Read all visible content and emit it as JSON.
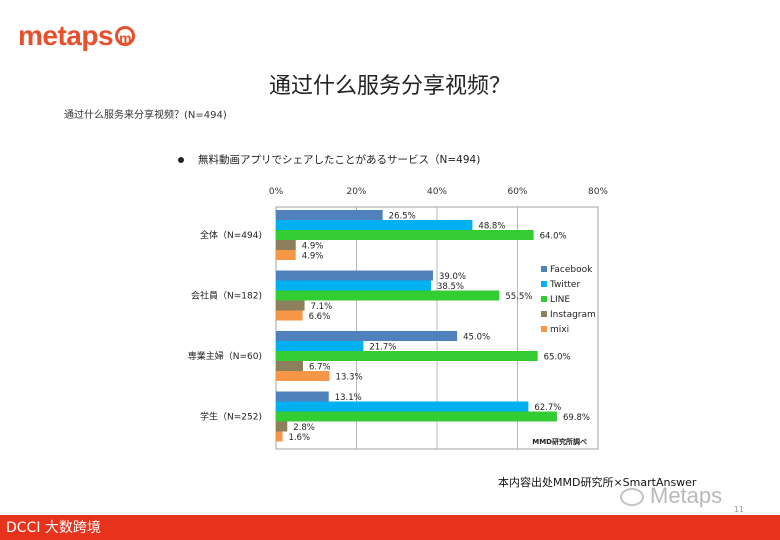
{
  "logo": "metaps",
  "logo_mark": "m",
  "slide_title": "通过什么服务分享视频？",
  "subtitle": "通过什么服务来分享视频？(N=494)",
  "chart_heading": "無料動画アプリでシェアしたことがあるサービス（N=494)",
  "source_note": "本内容出处MMD研究所×SmartAnswer",
  "watermark": "Metaps",
  "footer_text": "DCCI 大数跨境",
  "page_number": "11",
  "colors": {
    "brand": "#e8502c",
    "footer": "#e8331c"
  },
  "chart_data": {
    "type": "bar",
    "orientation": "horizontal",
    "categories": [
      "全体（N=494)",
      "会社員（N=182)",
      "専業主婦（N=60)",
      "学生（N=252)"
    ],
    "series": [
      {
        "name": "Facebook",
        "color": "#4f81bd",
        "values": [
          26.5,
          39.0,
          45.0,
          13.1
        ]
      },
      {
        "name": "Twitter",
        "color": "#00b0f0",
        "values": [
          48.8,
          38.5,
          21.7,
          62.7
        ]
      },
      {
        "name": "LINE",
        "color": "#33cc33",
        "values": [
          64.0,
          55.5,
          65.0,
          69.8
        ]
      },
      {
        "name": "Instagram",
        "color": "#8c7f5c",
        "values": [
          4.9,
          7.1,
          6.7,
          2.8
        ]
      },
      {
        "name": "mixi",
        "color": "#f79646",
        "values": [
          4.9,
          6.6,
          13.3,
          1.6
        ]
      }
    ],
    "xlim": [
      0,
      80
    ],
    "x_ticks": [
      "0%",
      "20%",
      "40%",
      "60%",
      "80%"
    ],
    "value_suffix": "%",
    "grid": true,
    "legend_position": "right",
    "source_label": "MMD研究所調べ"
  }
}
